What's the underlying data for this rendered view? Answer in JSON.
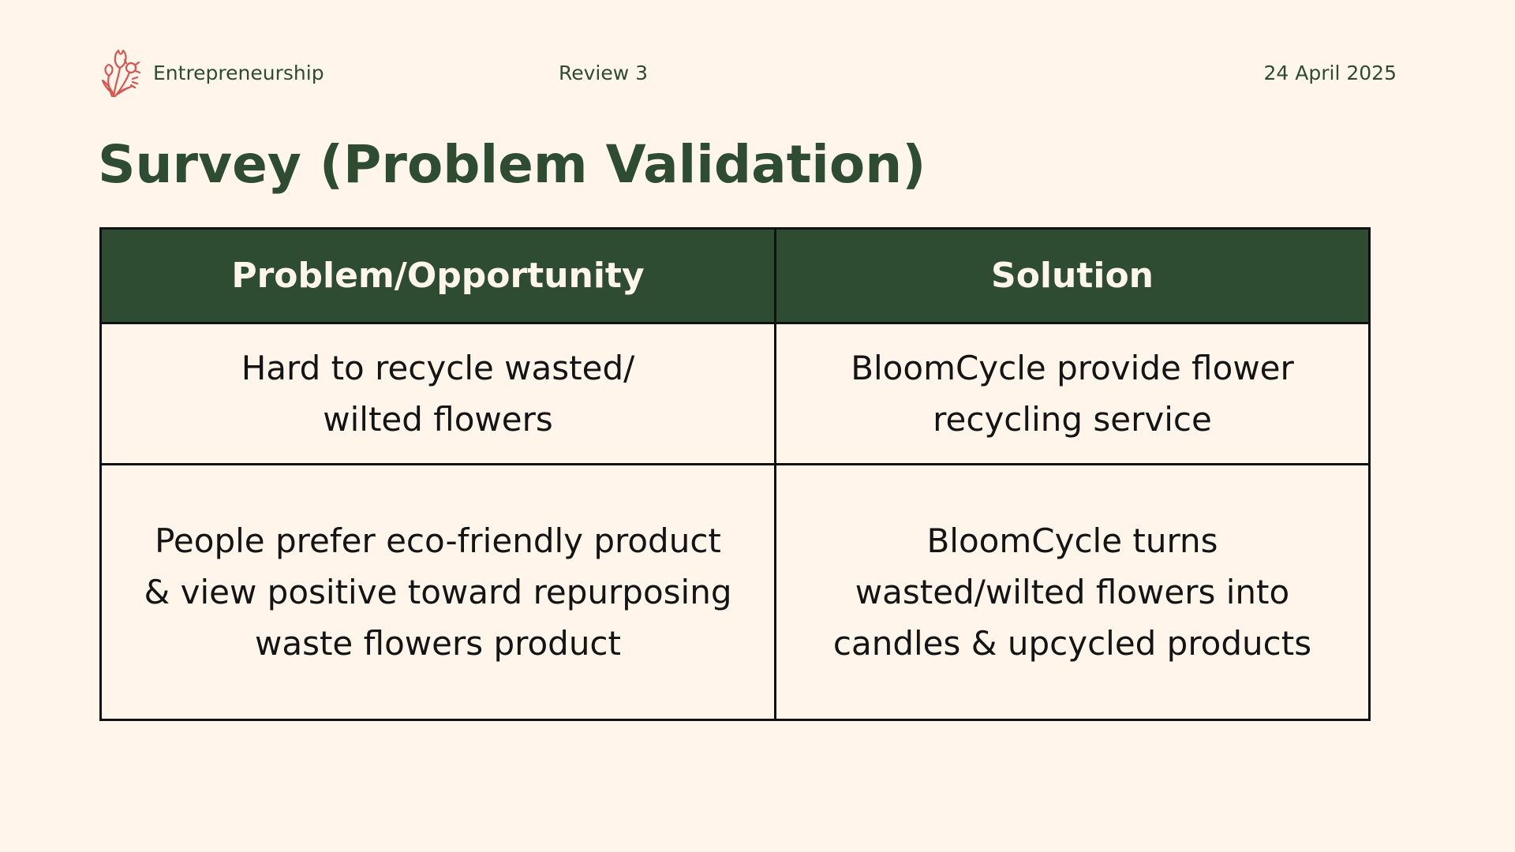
{
  "header": {
    "brand_label": "Entrepreneurship",
    "review_label": "Review 3",
    "date_label": "24 April 2025"
  },
  "slide": {
    "title": "Survey (Problem Validation)"
  },
  "table": {
    "headers": [
      "Problem/Opportunity",
      "Solution"
    ],
    "rows": [
      [
        "Hard to recycle wasted/\nwilted flowers",
        "BloomCycle provide flower\nrecycling service"
      ],
      [
        "People prefer eco-friendly product\n& view positive toward repurposing\nwaste flowers product",
        "BloomCycle turns\nwasted/wilted flowers into\ncandles & upcycled products"
      ]
    ]
  },
  "colors": {
    "background": "#FFF5EB",
    "primary_green": "#2E4C32",
    "logo_red": "#D9534F",
    "text_dark": "#141414"
  },
  "icons": {
    "logo": "flower-bouquet-icon"
  }
}
